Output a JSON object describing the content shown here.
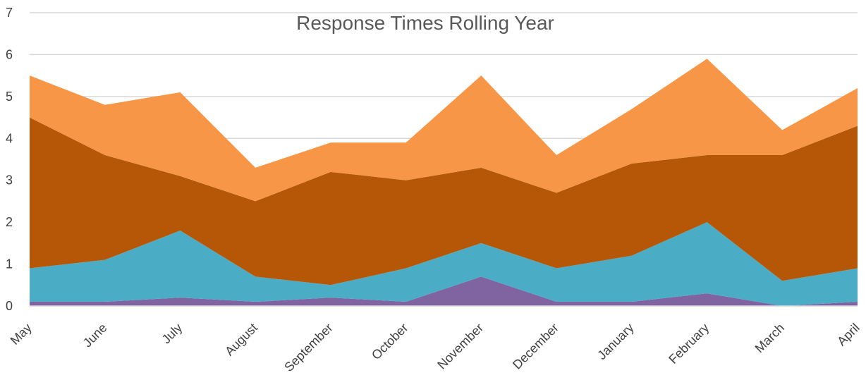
{
  "chart_data": {
    "type": "area",
    "stacked": true,
    "title": "Response Times Rolling Year",
    "xlabel": "",
    "ylabel": "",
    "categories": [
      "May",
      "June",
      "July",
      "August",
      "September",
      "October",
      "November",
      "December",
      "January",
      "February",
      "March",
      "April"
    ],
    "ylim": [
      0,
      7
    ],
    "yticks": [
      0,
      1,
      2,
      3,
      4,
      5,
      6,
      7
    ],
    "grid": true,
    "legend": "none",
    "series": [
      {
        "color": "#8064a2",
        "values": [
          0.1,
          0.1,
          0.2,
          0.1,
          0.2,
          0.1,
          0.7,
          0.1,
          0.1,
          0.3,
          0.0,
          0.1
        ]
      },
      {
        "color": "#4bacc6",
        "values": [
          0.8,
          1.0,
          1.6,
          0.6,
          0.3,
          0.8,
          0.8,
          0.8,
          1.1,
          1.7,
          0.6,
          0.8
        ]
      },
      {
        "color": "#b65708",
        "values": [
          3.6,
          2.5,
          1.3,
          1.8,
          2.7,
          2.1,
          1.8,
          1.8,
          2.2,
          1.6,
          3.0,
          3.4
        ]
      },
      {
        "color": "#f79646",
        "values": [
          1.0,
          1.2,
          2.0,
          0.8,
          0.7,
          0.9,
          2.2,
          0.9,
          1.3,
          2.3,
          0.6,
          0.9
        ]
      }
    ]
  }
}
